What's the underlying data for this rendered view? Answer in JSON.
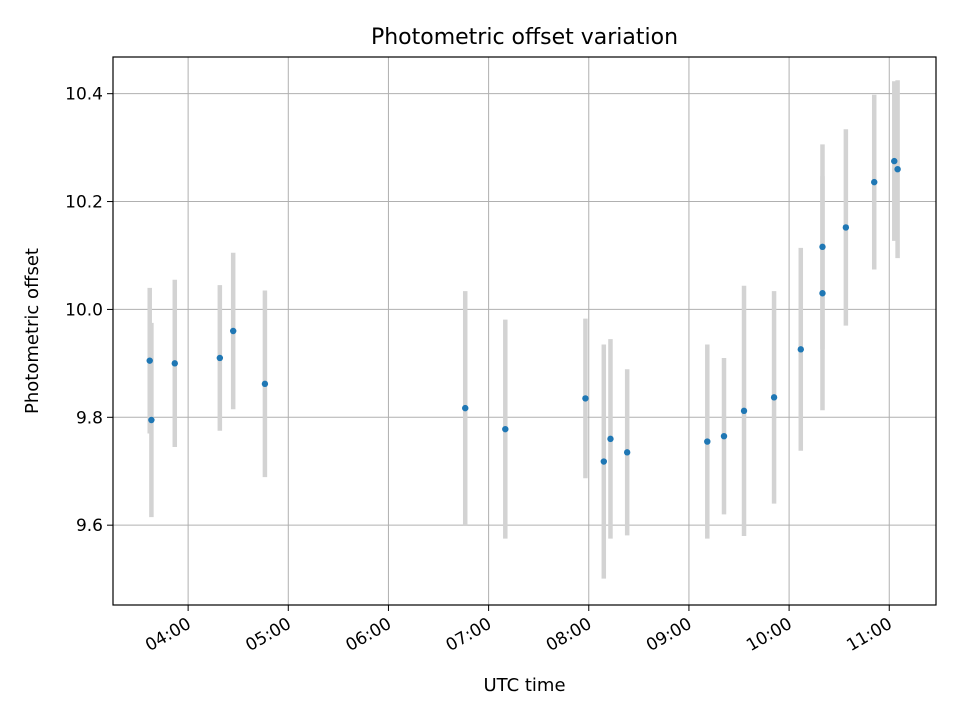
{
  "chart_data": {
    "type": "scatter",
    "title": "Photometric offset variation",
    "xlabel": "UTC time",
    "ylabel": "Photometric offset",
    "x_ticks": [
      "04:00",
      "05:00",
      "06:00",
      "07:00",
      "08:00",
      "09:00",
      "10:00",
      "11:00"
    ],
    "y_ticks": [
      "9.6",
      "9.8",
      "10.0",
      "10.2",
      "10.4"
    ],
    "xlim": [
      "03:15",
      "11:28"
    ],
    "ylim": [
      9.452,
      10.468
    ],
    "grid": true,
    "colors": {
      "points": "#1f77b4",
      "errorbars": "#d3d3d3",
      "grid": "#b0b0b0"
    },
    "points": [
      {
        "x": "03:37",
        "y": 9.905,
        "err": 0.135
      },
      {
        "x": "03:38",
        "y": 9.795,
        "err": 0.18
      },
      {
        "x": "03:52",
        "y": 9.9,
        "err": 0.155
      },
      {
        "x": "04:19",
        "y": 9.91,
        "err": 0.135
      },
      {
        "x": "04:27",
        "y": 9.96,
        "err": 0.145
      },
      {
        "x": "04:46",
        "y": 9.862,
        "err": 0.173
      },
      {
        "x": "06:46",
        "y": 9.817,
        "err": 0.217
      },
      {
        "x": "07:10",
        "y": 9.778,
        "err": 0.203
      },
      {
        "x": "07:58",
        "y": 9.835,
        "err": 0.148
      },
      {
        "x": "08:09",
        "y": 9.718,
        "err": 0.217
      },
      {
        "x": "08:13",
        "y": 9.76,
        "err": 0.185
      },
      {
        "x": "08:23",
        "y": 9.735,
        "err": 0.154
      },
      {
        "x": "09:11",
        "y": 9.755,
        "err": 0.18
      },
      {
        "x": "09:21",
        "y": 9.765,
        "err": 0.145
      },
      {
        "x": "09:33",
        "y": 9.812,
        "err": 0.232
      },
      {
        "x": "09:51",
        "y": 9.837,
        "err": 0.197
      },
      {
        "x": "10:07",
        "y": 9.926,
        "err": 0.188
      },
      {
        "x": "10:20",
        "y": 10.03,
        "err": 0.217
      },
      {
        "x": "10:20",
        "y": 10.116,
        "err": 0.19
      },
      {
        "x": "10:34",
        "y": 10.152,
        "err": 0.182
      },
      {
        "x": "10:51",
        "y": 10.236,
        "err": 0.162
      },
      {
        "x": "11:03",
        "y": 10.275,
        "err": 0.148
      },
      {
        "x": "11:05",
        "y": 10.26,
        "err": 0.165
      }
    ]
  }
}
